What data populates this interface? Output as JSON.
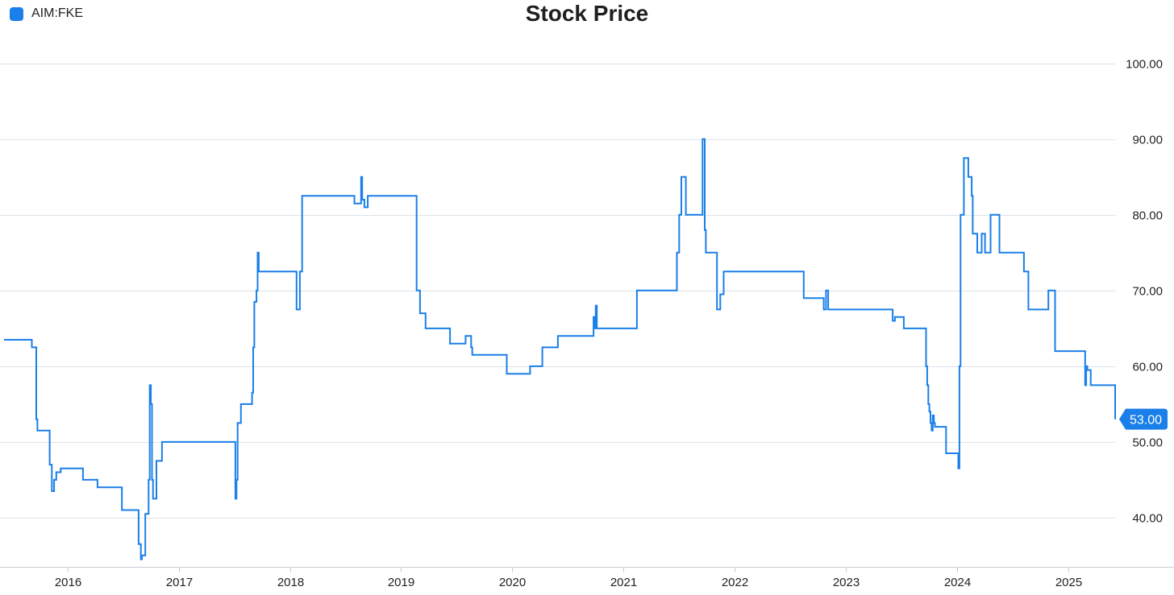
{
  "chart_data": {
    "type": "line",
    "title": "Stock Price",
    "xlabel": "",
    "ylabel": "",
    "grid": true,
    "legend_position": "top-left",
    "ylim": [
      33.5,
      102
    ],
    "y_ticks": [
      40,
      50,
      60,
      70,
      80,
      90,
      100
    ],
    "y_tick_labels": [
      "40.00",
      "50.00",
      "60.00",
      "70.00",
      "80.00",
      "90.00",
      "100.00"
    ],
    "x_ticks": [
      2016,
      2017,
      2018,
      2019,
      2020,
      2021,
      2022,
      2023,
      2024,
      2025
    ],
    "x_tick_labels": [
      "2016",
      "2017",
      "2018",
      "2019",
      "2020",
      "2021",
      "2022",
      "2023",
      "2024",
      "2025"
    ],
    "last_value_label": "53.00",
    "colors": {
      "series": "#1a7fe8",
      "grid": "#dde3ea",
      "axis": "#c7cdd6"
    },
    "series": [
      {
        "name": "AIM:FKE",
        "step": true,
        "x": [
          2015.43,
          2015.68,
          2015.72,
          2015.73,
          2015.74,
          2015.84,
          2015.86,
          2015.88,
          2015.9,
          2015.94,
          2016.14,
          2016.27,
          2016.49,
          2016.64,
          2016.66,
          2016.67,
          2016.68,
          2016.7,
          2016.73,
          2016.74,
          2016.75,
          2016.76,
          2016.77,
          2016.78,
          2016.8,
          2016.85,
          2016.86,
          2017.51,
          2017.52,
          2017.53,
          2017.54,
          2017.56,
          2017.66,
          2017.67,
          2017.68,
          2017.7,
          2017.71,
          2017.72,
          2017.73,
          2017.74,
          2017.75,
          2018.06,
          2018.09,
          2018.11,
          2018.38,
          2018.58,
          2018.64,
          2018.65,
          2018.67,
          2018.68,
          2018.7,
          2018.72,
          2019.14,
          2019.17,
          2019.22,
          2019.23,
          2019.24,
          2019.44,
          2019.5,
          2019.58,
          2019.63,
          2019.64,
          2019.66,
          2019.95,
          2020.16,
          2020.27,
          2020.41,
          2020.73,
          2020.74,
          2020.75,
          2020.76,
          2020.77,
          2020.78,
          2021.12,
          2021.46,
          2021.48,
          2021.5,
          2021.52,
          2021.56,
          2021.6,
          2021.71,
          2021.73,
          2021.74,
          2021.75,
          2021.84,
          2021.87,
          2021.9,
          2021.92,
          2022.62,
          2022.8,
          2022.82,
          2022.83,
          2022.84,
          2022.87,
          2023.4,
          2023.42,
          2023.44,
          2023.52,
          2023.55,
          2023.6,
          2023.72,
          2023.73,
          2023.74,
          2023.75,
          2023.76,
          2023.77,
          2023.78,
          2023.79,
          2023.8,
          2023.82,
          2023.84,
          2023.86,
          2023.9,
          2024.01,
          2024.02,
          2024.03,
          2024.06,
          2024.1,
          2024.11,
          2024.12,
          2024.13,
          2024.14,
          2024.15,
          2024.18,
          2024.22,
          2024.24,
          2024.25,
          2024.27,
          2024.3,
          2024.38,
          2024.58,
          2024.6,
          2024.64,
          2024.82,
          2024.83,
          2024.84,
          2024.88,
          2025.15,
          2025.16,
          2025.17,
          2025.2,
          2025.28,
          2025.42
        ],
        "values": [
          63.5,
          62.5,
          53,
          51.5,
          51.5,
          47,
          43.5,
          45,
          46,
          46.5,
          45,
          44,
          41,
          36.5,
          34.5,
          35,
          35,
          40.5,
          45,
          57.5,
          55,
          45,
          42.5,
          42.5,
          47.5,
          50,
          50,
          42.5,
          45,
          52.5,
          52.5,
          55,
          56.5,
          62.5,
          68.5,
          70,
          75,
          72.5,
          72.5,
          72.5,
          72.5,
          67.5,
          72.5,
          82.5,
          82.5,
          81.5,
          85,
          82,
          81,
          81,
          82.5,
          82.5,
          70,
          67,
          65,
          65,
          65,
          63,
          63,
          64,
          62.5,
          61.5,
          61.5,
          59,
          60,
          62.5,
          64,
          66.5,
          65,
          68,
          65,
          65,
          65,
          70,
          70,
          75,
          80,
          85,
          80,
          80,
          90,
          78,
          75,
          75,
          67.5,
          69.5,
          72.5,
          72.5,
          69,
          67.5,
          70,
          70,
          67.5,
          67.5,
          67.5,
          66,
          66.5,
          65,
          65,
          65,
          60,
          57.5,
          55,
          54,
          52.5,
          51.5,
          53.5,
          52.5,
          52,
          52,
          52,
          52,
          48.5,
          46.5,
          60,
          80,
          87.5,
          85,
          85,
          85,
          82.5,
          77.5,
          77.5,
          75,
          77.5,
          77.5,
          75,
          75,
          80,
          75,
          75,
          72.5,
          67.5,
          70,
          70,
          70,
          62,
          57.5,
          60,
          59.5,
          57.5,
          57.5,
          53
        ]
      }
    ]
  }
}
